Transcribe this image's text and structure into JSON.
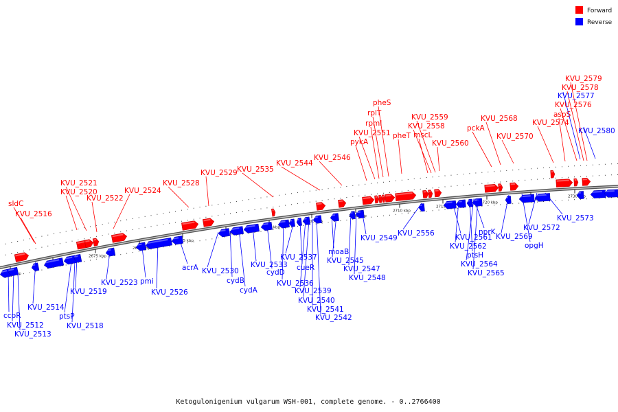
{
  "caption": "Ketogulonigenium vulgarum WSH-001, complete genome. - 0..2766400",
  "legend": [
    {
      "label": "Forward",
      "color": "#ff0000"
    },
    {
      "label": "Reverse",
      "color": "#0000ff"
    }
  ],
  "colors": {
    "forward": "#ff0000",
    "reverse": "#0000ff",
    "backbone": "#888888"
  },
  "ticks": [
    "2665 kbp",
    "2670 kbp",
    "2675 kbp",
    "2680 kbp",
    "2685 kbp",
    "2690 kbp",
    "2695 kbp",
    "2700 kbp",
    "2705 kbp",
    "2710 kbp",
    "2715 kbp",
    "2720 kbp",
    "2725 kbp",
    "2730 kbp"
  ],
  "forward_labels": [
    "sldC",
    "KVU_2516",
    "KVU_2520",
    "KVU_2521",
    "KVU_2522",
    "KVU_2524",
    "KVU_2528",
    "KVU_2529",
    "KVU_2535",
    "KVU_2544",
    "KVU_2546",
    "pykA",
    "KVU_2551",
    "rpmI",
    "rplT",
    "pheS",
    "pheT",
    "mscL",
    "KVU_2558",
    "KVU_2559",
    "KVU_2560",
    "pckA",
    "KVU_2568",
    "KVU_2570",
    "KVU_2574",
    "aspS",
    "KVU_2576",
    "KVU_2578",
    "KVU_2579"
  ],
  "reverse_labels": [
    "ccpR",
    "KVU_2512",
    "KVU_2513",
    "KVU_2514",
    "ptsP",
    "KVU_2518",
    "KVU_2519",
    "KVU_2523",
    "pmi",
    "KVU_2526",
    "acrA",
    "KVU_2530",
    "cydB",
    "cydA",
    "KVU_2533",
    "cydD",
    "KVU_2536",
    "KVU_2537",
    "cueR",
    "KVU_2539",
    "KVU_2540",
    "KVU_2541",
    "KVU_2542",
    "moaB",
    "KVU_2545",
    "KVU_2547",
    "KVU_2548",
    "KVU_2549",
    "KVU_2556",
    "KVU_2561",
    "KVU_2562",
    "ptsH",
    "KVU_2564",
    "KVU_2565",
    "nprK",
    "KVU_2569",
    "opgH",
    "KVU_2572",
    "KVU_2573",
    "KVU_2577",
    "KVU_2580"
  ]
}
